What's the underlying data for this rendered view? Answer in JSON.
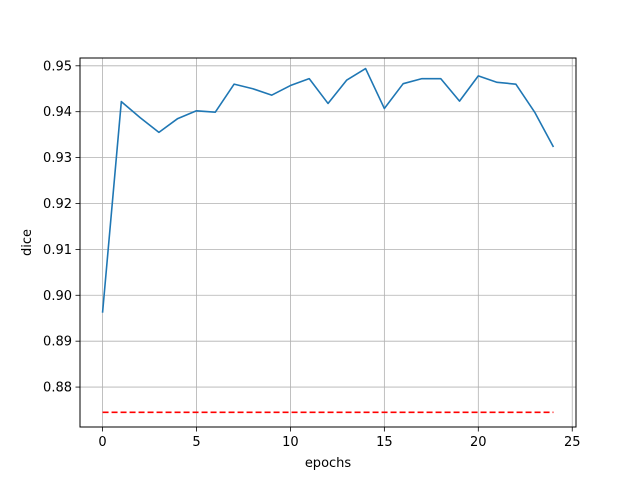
{
  "chart_data": {
    "type": "line",
    "title": "",
    "xlabel": "epochs",
    "ylabel": "dice",
    "xlim": [
      -1.2,
      25.2
    ],
    "ylim": [
      0.8713,
      0.9517
    ],
    "xticks": [
      0,
      5,
      10,
      15,
      20,
      25
    ],
    "xtick_labels": [
      "0",
      "5",
      "10",
      "15",
      "20",
      "25"
    ],
    "yticks": [
      0.88,
      0.89,
      0.9,
      0.91,
      0.92,
      0.93,
      0.94,
      0.95
    ],
    "ytick_labels": [
      "0.88",
      "0.89",
      "0.90",
      "0.91",
      "0.92",
      "0.93",
      "0.94",
      "0.95"
    ],
    "grid": true,
    "series": [
      {
        "style": "solid",
        "color": "#1f77b4",
        "x": [
          0,
          1,
          2,
          3,
          4,
          5,
          6,
          7,
          8,
          9,
          10,
          11,
          12,
          13,
          14,
          15,
          16,
          17,
          18,
          19,
          20,
          21,
          22,
          23,
          24
        ],
        "y": [
          0.8962,
          0.9422,
          0.9387,
          0.9355,
          0.9385,
          0.9402,
          0.9399,
          0.946,
          0.945,
          0.9436,
          0.9457,
          0.9472,
          0.9418,
          0.9469,
          0.9494,
          0.9407,
          0.9461,
          0.9472,
          0.9472,
          0.9423,
          0.9478,
          0.9464,
          0.946,
          0.9399,
          0.9323
        ]
      },
      {
        "style": "dashed",
        "color": "#ff0000",
        "x": [
          0,
          24
        ],
        "y": [
          0.8745,
          0.8745
        ]
      }
    ]
  }
}
